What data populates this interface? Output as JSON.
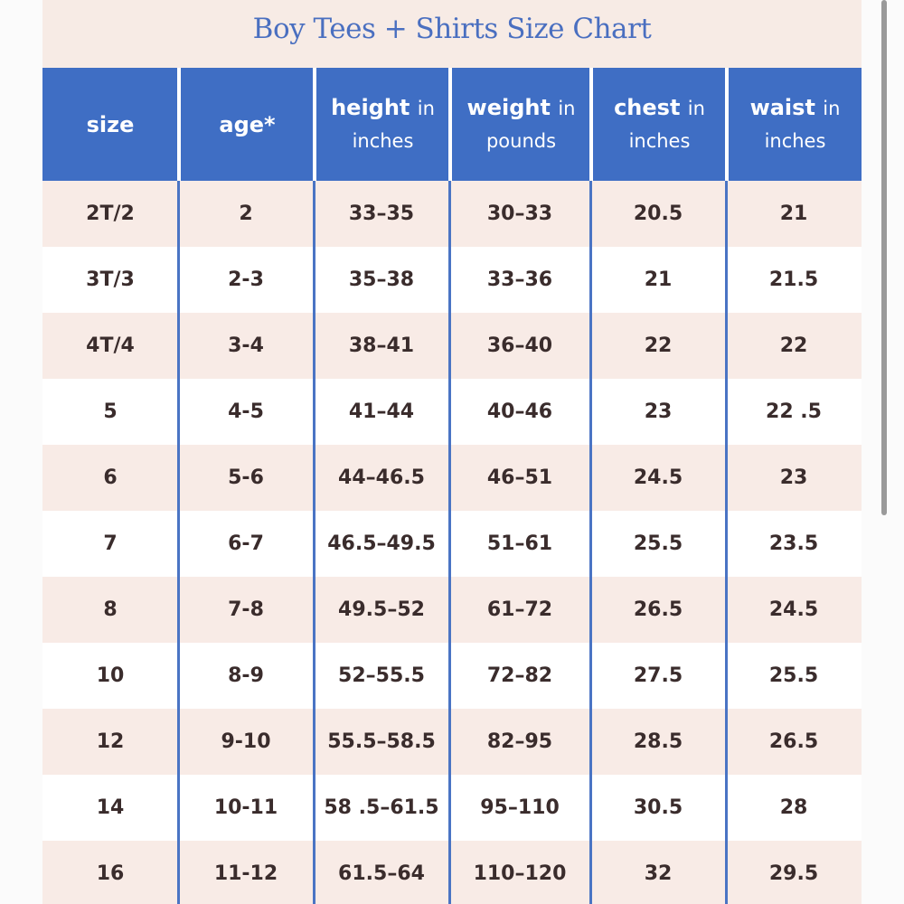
{
  "title": "Boy Tees + Shirts Size Chart",
  "table": {
    "header": [
      {
        "label": "size"
      },
      {
        "label": "age*"
      },
      {
        "label": "height",
        "in": "in",
        "unit": "inches"
      },
      {
        "label": "weight",
        "in": "in",
        "unit": "pounds"
      },
      {
        "label": "chest",
        "in": "in",
        "unit": "inches"
      },
      {
        "label": "waist",
        "in": "in",
        "unit": "inches"
      }
    ],
    "rows": [
      [
        "2T/2",
        "2",
        "33–35",
        "30–33",
        "20.5",
        "21"
      ],
      [
        "3T/3",
        "2-3",
        "35–38",
        "33–36",
        "21",
        "21.5"
      ],
      [
        "4T/4",
        "3-4",
        "38–41",
        "36–40",
        "22",
        "22"
      ],
      [
        "5",
        "4-5",
        "41–44",
        "40–46",
        "23",
        "22 .5"
      ],
      [
        "6",
        "5-6",
        "44–46.5",
        "46–51",
        "24.5",
        "23"
      ],
      [
        "7",
        "6-7",
        "46.5–49.5",
        "51–61",
        "25.5",
        "23.5"
      ],
      [
        "8",
        "7-8",
        "49.5–52",
        "61–72",
        "26.5",
        "24.5"
      ],
      [
        "10",
        "8-9",
        "52–55.5",
        "72–82",
        "27.5",
        "25.5"
      ],
      [
        "12",
        "9-10",
        "55.5–58.5",
        "82–95",
        "28.5",
        "26.5"
      ],
      [
        "14",
        "10-11",
        "58 .5–61.5",
        "95–110",
        "30.5",
        "28"
      ],
      [
        "16",
        "11-12",
        "61.5–64",
        "110–120",
        "32",
        "29.5"
      ]
    ]
  }
}
